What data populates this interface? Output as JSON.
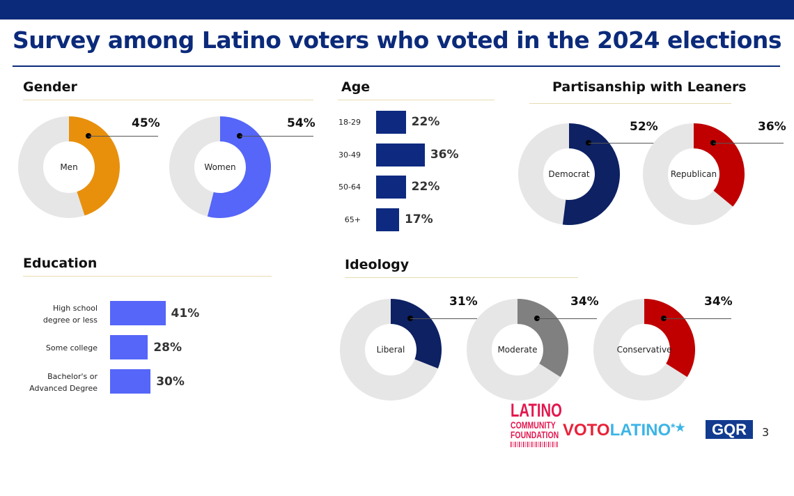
{
  "title": "Survey among Latino voters who voted in the 2024 elections",
  "colors": {
    "track": "#e6e6e6",
    "men": "#e8900c",
    "women": "#5566f8",
    "democrat": "#0d2163",
    "republican": "#c00000",
    "liberal": "#0d2163",
    "moderate": "#808080",
    "conservative": "#c00000",
    "age_bar": "#0d2a80",
    "edu_bar": "#5566f8"
  },
  "chart_data": [
    {
      "type": "pie",
      "title": "Gender",
      "series": [
        {
          "name": "Men",
          "value": 45
        },
        {
          "name": "Women",
          "value": 54
        }
      ],
      "labels": [
        "45%",
        "54%"
      ]
    },
    {
      "type": "bar",
      "title": "Age",
      "categories": [
        "18-29",
        "30-49",
        "50-64",
        "65+"
      ],
      "values": [
        22,
        36,
        22,
        17
      ],
      "labels": [
        "22%",
        "36%",
        "22%",
        "17%"
      ]
    },
    {
      "type": "pie",
      "title": "Partisanship with Leaners",
      "series": [
        {
          "name": "Democrat",
          "value": 52
        },
        {
          "name": "Republican",
          "value": 36
        }
      ],
      "labels": [
        "52%",
        "36%"
      ]
    },
    {
      "type": "bar",
      "title": "Education",
      "categories": [
        [
          "High school",
          "degree or less"
        ],
        [
          "Some college"
        ],
        [
          "Bachelor's or",
          "Advanced Degree"
        ]
      ],
      "values": [
        41,
        28,
        30
      ],
      "labels": [
        "41%",
        "28%",
        "30%"
      ]
    },
    {
      "type": "pie",
      "title": "Ideology",
      "series": [
        {
          "name": "Liberal",
          "value": 31
        },
        {
          "name": "Moderate",
          "value": 34
        },
        {
          "name": "Conservative",
          "value": 34
        }
      ],
      "labels": [
        "31%",
        "34%",
        "34%"
      ]
    }
  ],
  "logos": {
    "lcf": [
      "LATINO",
      "COMMUNITY",
      "FOUNDATION"
    ],
    "voto": "VOTO",
    "latino": "LATINO",
    "star": "*★",
    "gqr": "GQR"
  },
  "page_number": "3"
}
